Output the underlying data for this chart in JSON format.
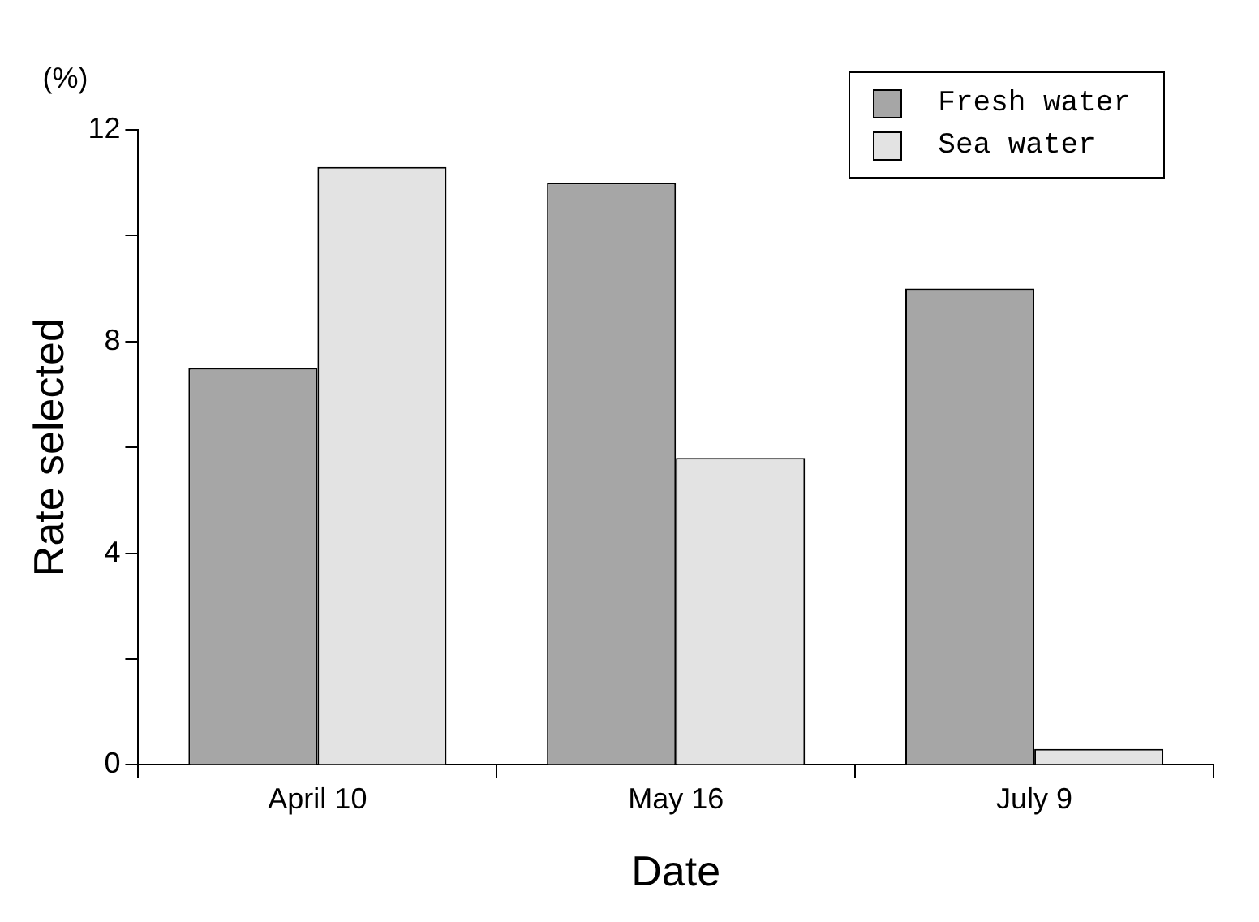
{
  "chart_data": {
    "type": "bar",
    "xlabel": "Date",
    "ylabel": "Rate selected",
    "annotations": [
      "(%)"
    ],
    "categories": [
      "April 10",
      "May 16",
      "July 9"
    ],
    "series": [
      {
        "name": "Fresh water",
        "color": "#a6a6a6",
        "values": [
          7.5,
          11,
          9
        ]
      },
      {
        "name": "Sea water",
        "color": "#e3e3e3",
        "values": [
          11.3,
          5.8,
          0.3
        ]
      }
    ],
    "ylim": [
      0,
      12
    ],
    "yticks": [
      0,
      {
        "value": 2,
        "label": null
      },
      4,
      {
        "value": 6,
        "label": null
      },
      8,
      {
        "value": 10,
        "label": null
      },
      12
    ],
    "grid": false,
    "legend": "top right"
  }
}
